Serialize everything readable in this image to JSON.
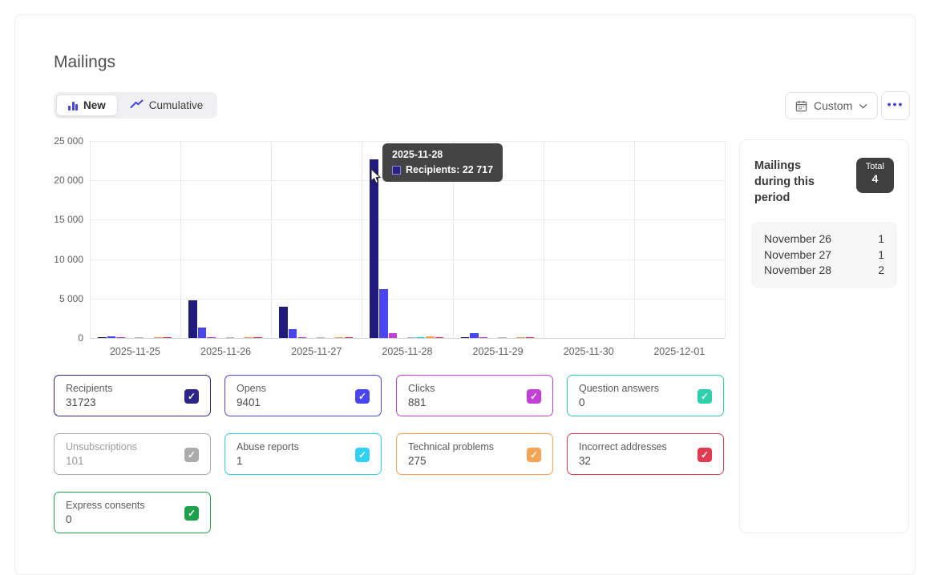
{
  "page": {
    "title": "Mailings"
  },
  "toolbar": {
    "views": [
      {
        "label": "New",
        "selected": true,
        "icon": "bar-chart-icon"
      },
      {
        "label": "Cumulative",
        "selected": false,
        "icon": "line-chart-icon"
      }
    ],
    "range_label": "Custom",
    "more_label": "•••"
  },
  "chart_data": {
    "type": "bar",
    "title": "",
    "xlabel": "",
    "ylabel": "",
    "x": [
      "2025-11-25",
      "2025-11-26",
      "2025-11-27",
      "2025-11-28",
      "2025-11-29",
      "2025-11-30",
      "2025-12-01"
    ],
    "ylim": [
      0,
      25000
    ],
    "ytick_labels": [
      "25 000",
      "20 000",
      "15 000",
      "10 000",
      "5 000",
      "0"
    ],
    "grid": true,
    "legend_position": "none",
    "series": [
      {
        "name": "Recipients",
        "color": "#211a7e",
        "values": [
          100,
          4800,
          4000,
          22717,
          106,
          0,
          0
        ]
      },
      {
        "name": "Opens",
        "color": "#4a45f2",
        "values": [
          180,
          1350,
          1100,
          6200,
          571,
          0,
          0
        ]
      },
      {
        "name": "Clicks",
        "color": "#c43fd8",
        "values": [
          25,
          120,
          110,
          590,
          36,
          0,
          0
        ]
      },
      {
        "name": "Question answers",
        "color": "#2fd0ac",
        "values": [
          0,
          0,
          0,
          0,
          0,
          0,
          0
        ]
      },
      {
        "name": "Unsubscriptions",
        "color": "#b9b9b9",
        "values": [
          5,
          20,
          18,
          50,
          8,
          0,
          0
        ]
      },
      {
        "name": "Abuse reports",
        "color": "#2fd1f5",
        "values": [
          0,
          0,
          0,
          1,
          0,
          0,
          0
        ]
      },
      {
        "name": "Technical problems",
        "color": "#f5a355",
        "values": [
          25,
          35,
          30,
          160,
          25,
          0,
          0
        ]
      },
      {
        "name": "Incorrect addresses",
        "color": "#e23a52",
        "values": [
          3,
          8,
          7,
          10,
          4,
          0,
          0
        ]
      },
      {
        "name": "Express consents",
        "color": "#1fa04c",
        "values": [
          0,
          0,
          0,
          0,
          0,
          0,
          0
        ]
      }
    ],
    "tooltip": {
      "date": "2025-11-28",
      "series": "Recipients",
      "value": "22 717",
      "text": "Recipients: 22 717",
      "swatch_color": "#2a2386"
    }
  },
  "summary_panel": {
    "title": "Mailings during this period",
    "total_label": "Total",
    "total_value": "4",
    "rows": [
      {
        "label": "November 26",
        "value": "1"
      },
      {
        "label": "November 27",
        "value": "1"
      },
      {
        "label": "November 28",
        "value": "2"
      }
    ]
  },
  "metric_cards": [
    {
      "label": "Recipients",
      "value": "31723",
      "color": "#2b2687",
      "checked": true,
      "muted": false
    },
    {
      "label": "Opens",
      "value": "9401",
      "color": "#4a45f2",
      "checked": true,
      "muted": false
    },
    {
      "label": "Clicks",
      "value": "881",
      "color": "#c43fd8",
      "checked": true,
      "muted": false
    },
    {
      "label": "Question answers",
      "value": "0",
      "color": "#2fd0ac",
      "checked": true,
      "muted": false
    },
    {
      "label": "Unsubscriptions",
      "value": "101",
      "color": "#ababab",
      "checked": true,
      "muted": true
    },
    {
      "label": "Abuse reports",
      "value": "1",
      "color": "#2fd1f5",
      "checked": true,
      "muted": false
    },
    {
      "label": "Technical problems",
      "value": "275",
      "color": "#f5a355",
      "checked": true,
      "muted": false
    },
    {
      "label": "Incorrect addresses",
      "value": "32",
      "color": "#e23a52",
      "checked": true,
      "muted": false
    },
    {
      "label": "Express consents",
      "value": "0",
      "color": "#1fa04c",
      "checked": true,
      "muted": false
    }
  ]
}
